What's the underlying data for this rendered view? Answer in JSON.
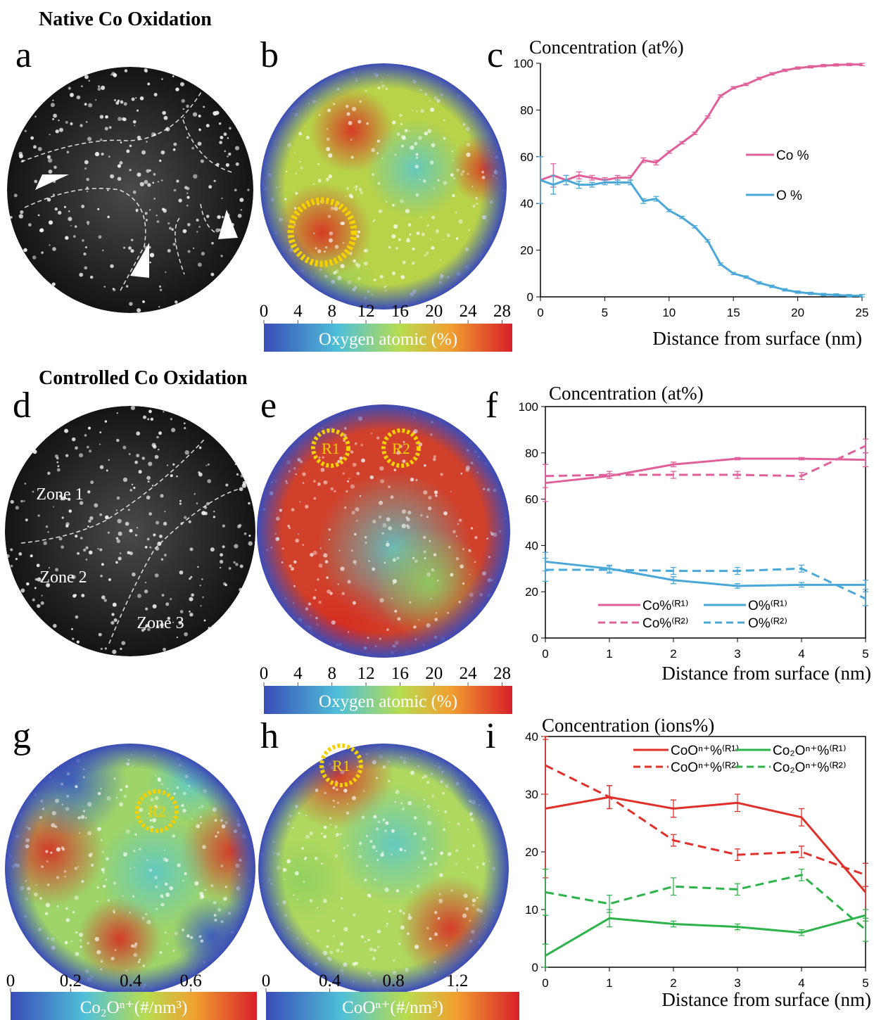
{
  "headings": [
    "Native Co Oxidation",
    "Controlled Co Oxidation"
  ],
  "chart_data": [
    {
      "type": "map",
      "panel": "a",
      "colormap": "gray",
      "annotations": []
    },
    {
      "type": "map",
      "panel": "b",
      "colormap": "jet",
      "annotations": []
    },
    {
      "type": "line",
      "panel": "c",
      "ylabel": "Concentration (at%)",
      "xlabel": "Distance from surface (nm)",
      "x": [
        0,
        1,
        2,
        3,
        4,
        5,
        6,
        7,
        8,
        9,
        10,
        11,
        12,
        13,
        14,
        15,
        16,
        17,
        18,
        19,
        20,
        21,
        22,
        23,
        24,
        25
      ],
      "xlim": [
        0,
        25
      ],
      "xticks": [
        0,
        5,
        10,
        15,
        20,
        25
      ],
      "ylim": [
        0,
        100
      ],
      "yticks": [
        0,
        20,
        40,
        60,
        80,
        100
      ],
      "box": false,
      "series": [
        {
          "name": "Co %",
          "color": "#e0609a",
          "dash": false,
          "values": [
            50,
            52,
            50,
            52,
            51,
            50,
            51,
            51,
            58.5,
            57.5,
            62,
            66,
            70,
            77,
            86,
            89.5,
            91,
            93.5,
            95.5,
            97,
            98,
            98.5,
            99,
            99.3,
            99.5,
            99.5
          ],
          "errors": [
            10,
            5,
            2,
            1.5,
            1,
            1,
            1,
            1,
            1,
            1,
            0.5,
            0.5,
            0.5,
            0.5,
            0.5,
            0.5,
            0.5,
            0.5,
            0.5,
            0.5,
            0.5,
            0.5,
            0.5,
            0.5,
            0.5,
            0.5
          ]
        },
        {
          "name": "O %",
          "color": "#4aa8d8",
          "dash": false,
          "values": [
            50,
            48,
            50,
            48,
            48,
            49,
            49,
            49,
            41,
            42,
            37,
            34,
            30,
            24,
            14,
            10,
            8.5,
            6,
            4.5,
            3,
            2,
            1.5,
            1,
            0.8,
            0.5,
            0.5
          ],
          "errors": [
            10,
            4,
            2,
            1.5,
            1,
            1,
            1,
            1,
            1,
            1,
            0.5,
            0.5,
            0.5,
            0.5,
            0.5,
            0.5,
            0.5,
            0.5,
            0.5,
            0.5,
            0.5,
            0.5,
            0.5,
            0.5,
            0.5,
            0.5
          ]
        }
      ]
    },
    {
      "type": "colorbar",
      "label": "Oxygen atomic (%)",
      "xlim": [
        0,
        29.2
      ],
      "xticks": [
        0,
        4,
        8,
        12,
        16,
        20,
        24,
        28
      ]
    },
    {
      "type": "map",
      "panel": "d",
      "colormap": "gray",
      "annotations": [
        "Zone 1",
        "Zone 2",
        "Zone 3"
      ]
    },
    {
      "type": "map",
      "panel": "e",
      "colormap": "jet",
      "annotations": [
        "R1",
        "R2"
      ]
    },
    {
      "type": "line",
      "panel": "f",
      "ylabel": "Concentration (at%)",
      "xlabel": "Distance from surface (nm)",
      "x": [
        0,
        1,
        2,
        3,
        4,
        5
      ],
      "xlim": [
        0,
        5
      ],
      "xticks": [
        0,
        1,
        2,
        3,
        4,
        5
      ],
      "ylim": [
        0,
        100
      ],
      "yticks": [
        0,
        20,
        40,
        60,
        80,
        100
      ],
      "box": true,
      "series": [
        {
          "name": "Co%⁽ᴿ¹⁾",
          "color": "#e0609a",
          "dash": false,
          "values": [
            67,
            70,
            75,
            77.5,
            77.5,
            77
          ],
          "errors": [
            8,
            1,
            1,
            0.5,
            0.5,
            3
          ]
        },
        {
          "name": "O%⁽ᴿ¹⁾",
          "color": "#4aa8d8",
          "dash": false,
          "values": [
            33,
            30,
            25,
            22.5,
            23,
            23
          ],
          "errors": [
            4,
            1.5,
            1.5,
            1,
            1,
            2
          ]
        },
        {
          "name": "Co%⁽ᴿ²⁾",
          "color": "#e0609a",
          "dash": true,
          "values": [
            70,
            70.5,
            70.5,
            70.5,
            70,
            83
          ],
          "errors": [
            5,
            1.5,
            1.5,
            1.5,
            1.5,
            3
          ]
        },
        {
          "name": "O%⁽ᴿ²⁾",
          "color": "#4aa8d8",
          "dash": true,
          "values": [
            29.5,
            29.5,
            29,
            29,
            30,
            17
          ],
          "errors": [
            5,
            1.5,
            1.5,
            1.5,
            1.5,
            3
          ]
        }
      ]
    },
    {
      "type": "colorbar",
      "label": "Oxygen atomic (%)",
      "xlim": [
        0,
        29.2
      ],
      "xticks": [
        0,
        4,
        8,
        12,
        16,
        20,
        24,
        28
      ]
    },
    {
      "type": "map",
      "panel": "g",
      "colormap": "jet",
      "annotations": [
        "R2"
      ]
    },
    {
      "type": "map",
      "panel": "h",
      "colormap": "jet",
      "annotations": [
        "R1"
      ]
    },
    {
      "type": "line",
      "panel": "i",
      "ylabel": "Concentration (ions%)",
      "xlabel": "Distance from surface (nm)",
      "x": [
        0,
        1,
        2,
        3,
        4,
        5
      ],
      "xlim": [
        0,
        5
      ],
      "xticks": [
        0,
        1,
        2,
        3,
        4,
        5
      ],
      "ylim": [
        0,
        40
      ],
      "yticks": [
        0,
        10,
        20,
        30,
        40
      ],
      "box": true,
      "series": [
        {
          "name": "CoOⁿ⁺%⁽ᴿ¹⁾",
          "color": "#e0302a",
          "dash": false,
          "values": [
            27.5,
            29.5,
            27.5,
            28.5,
            26,
            13
          ],
          "errors": [
            12,
            2,
            1.5,
            1.5,
            1.5,
            5
          ]
        },
        {
          "name": "Co₂Oⁿ⁺%⁽ᴿ¹⁾",
          "color": "#2db34a",
          "dash": false,
          "values": [
            2,
            8.5,
            7.5,
            7,
            6,
            9
          ],
          "errors": [
            2,
            1.5,
            0.5,
            0.5,
            0.5,
            1
          ]
        },
        {
          "name": "CoOⁿ⁺%⁽ᴿ²⁾",
          "color": "#e0302a",
          "dash": true,
          "values": [
            35,
            29.5,
            22,
            19.5,
            20,
            16
          ],
          "errors": [
            5,
            2,
            1,
            1,
            1,
            2
          ]
        },
        {
          "name": "Co₂Oⁿ⁺%⁽ᴿ²⁾",
          "color": "#2db34a",
          "dash": true,
          "values": [
            13,
            11,
            14,
            13.5,
            16,
            6.5
          ],
          "errors": [
            4,
            1.5,
            1.5,
            1,
            1,
            2
          ]
        }
      ]
    },
    {
      "type": "colorbar",
      "label": "Co₂Oⁿ⁺(#/nm³)",
      "xlim": [
        0,
        0.82
      ],
      "xticks": [
        0,
        0.2,
        0.4,
        0.6
      ]
    },
    {
      "type": "colorbar",
      "label": "CoOⁿ⁺(#/nm³)",
      "xlim": [
        0,
        1.59
      ],
      "xticks": [
        0,
        0.4,
        0.8,
        1.2
      ]
    }
  ]
}
